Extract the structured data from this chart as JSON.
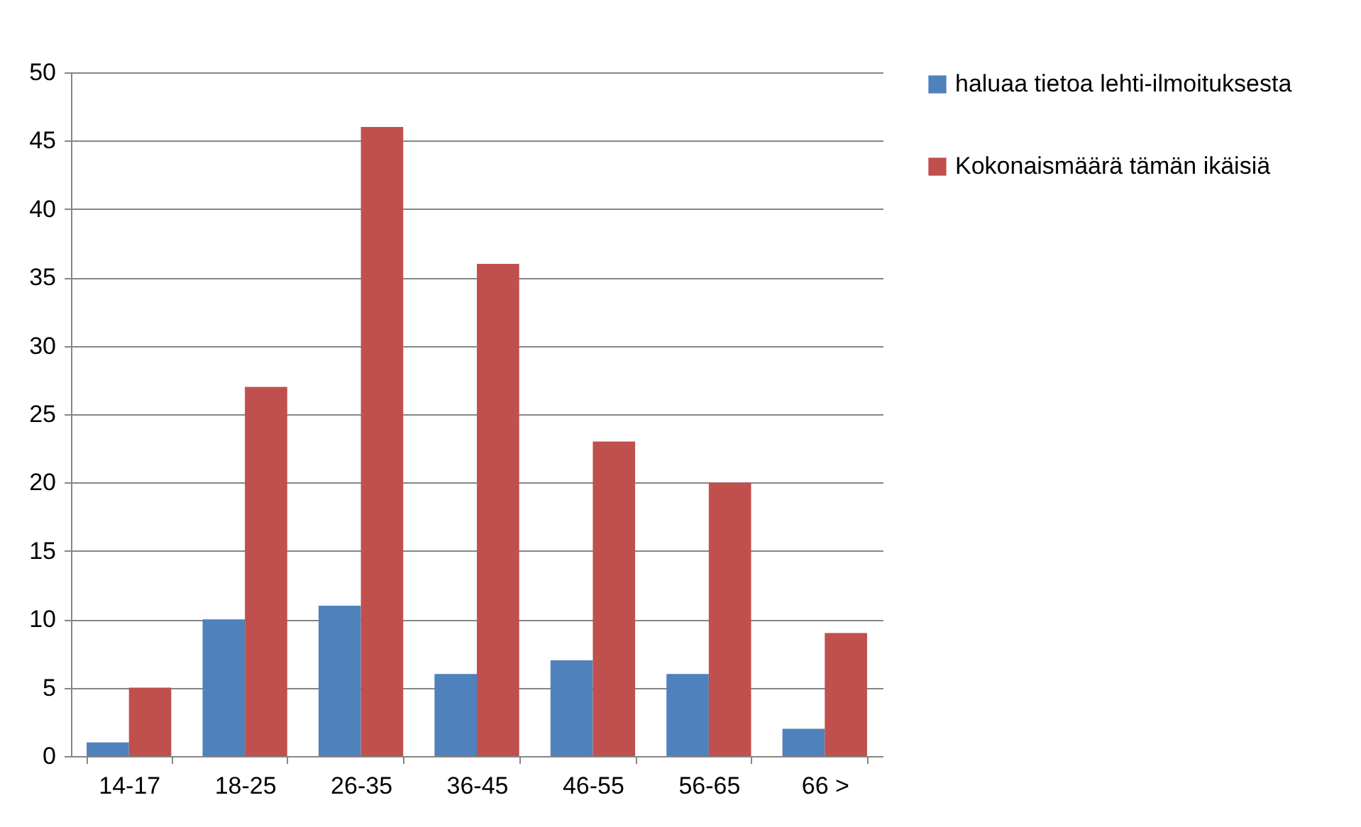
{
  "chart_data": {
    "type": "bar",
    "categories": [
      "14-17",
      "18-25",
      "26-35",
      "36-45",
      "46-55",
      "56-65",
      "66 >"
    ],
    "series": [
      {
        "name": "haluaa tietoa lehti-ilmoituksesta",
        "color": "#4f81bd",
        "values": [
          1,
          10,
          11,
          6,
          7,
          6,
          2
        ]
      },
      {
        "name": "Kokonaismäärä tämän ikäisiä",
        "color": "#c0504d",
        "values": [
          5,
          27,
          46,
          36,
          23,
          20,
          9
        ]
      }
    ],
    "ylim": [
      0,
      50
    ],
    "yticks": [
      0,
      5,
      10,
      15,
      20,
      25,
      30,
      35,
      40,
      45,
      50
    ],
    "grid": "y",
    "legend": "right"
  }
}
